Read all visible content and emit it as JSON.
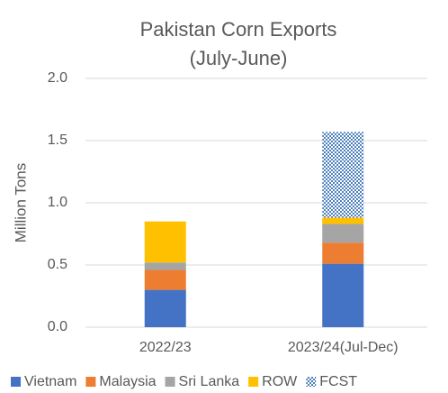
{
  "chart_data": {
    "type": "stacked_bar",
    "title": "Pakistan Corn Exports",
    "subtitle": "(July-June)",
    "y_label": "Million Tons",
    "categories": [
      "2022/23",
      "2023/24(Jul-Dec)"
    ],
    "series": [
      {
        "name": "Vietnam",
        "color": "#4472c4",
        "values": [
          0.3,
          0.51
        ]
      },
      {
        "name": "Malaysia",
        "color": "#ed7d31",
        "values": [
          0.16,
          0.17
        ]
      },
      {
        "name": "Sri Lanka",
        "color": "#a5a5a5",
        "values": [
          0.06,
          0.15
        ]
      },
      {
        "name": "ROW",
        "color": "#ffc000",
        "values": [
          0.33,
          0.05
        ]
      },
      {
        "name": "FCST",
        "color": "#4f81bd",
        "pattern": "dots",
        "values": [
          0,
          0.69
        ]
      }
    ],
    "ylim": [
      0,
      2
    ],
    "yticks": [
      {
        "value": 0,
        "label": "0.0"
      },
      {
        "value": 0.5,
        "label": "0.5"
      },
      {
        "value": 1,
        "label": "1.0"
      },
      {
        "value": 1.5,
        "label": "1.5"
      },
      {
        "value": 2,
        "label": "2.0"
      }
    ],
    "grid": true,
    "legend": "bottom"
  }
}
